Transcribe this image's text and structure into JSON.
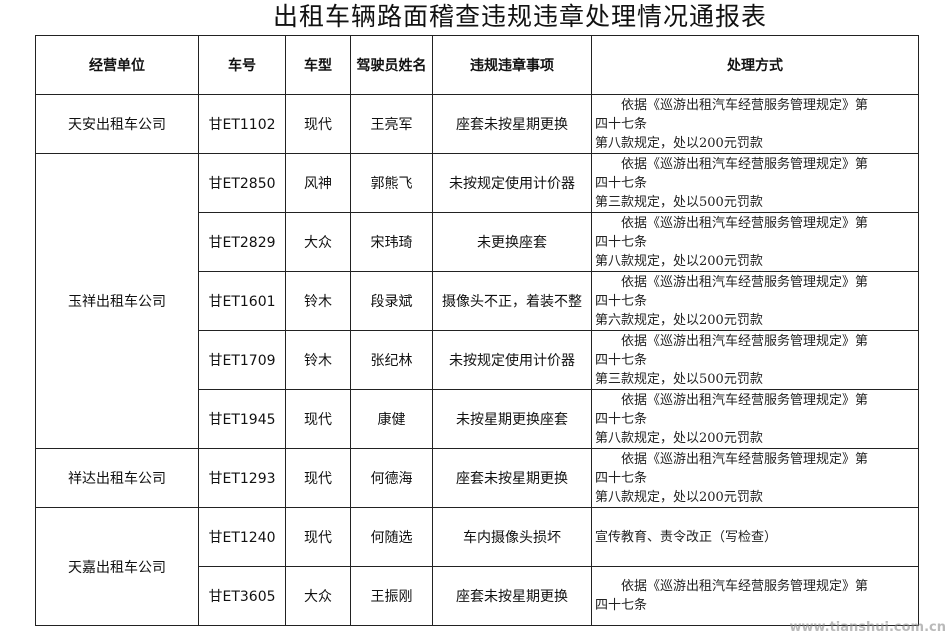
{
  "title": "出租车辆路面稽查违规违章处理情况通报表",
  "headers": [
    "经营单位",
    "车号",
    "车型",
    "驾驶员姓名",
    "违规违章事项",
    "处理方式"
  ],
  "groups": [
    {
      "company": "天安出租车公司",
      "rows": [
        {
          "plate": "甘ET1102",
          "model": "现代",
          "driver": "王亮军",
          "violation": "座套未按星期更换",
          "action": [
            "依据《巡游出租汽车经营服务管理规定》第",
            "四十七条",
            "第八款规定，处以200元罚款"
          ]
        }
      ]
    },
    {
      "company": "玉祥出租车公司",
      "rows": [
        {
          "plate": "甘ET2850",
          "model": "风神",
          "driver": "郭熊飞",
          "violation": "未按规定使用计价器",
          "action": [
            "依据《巡游出租汽车经营服务管理规定》第",
            "四十七条",
            "第三款规定，处以500元罚款"
          ]
        },
        {
          "plate": "甘ET2829",
          "model": "大众",
          "driver": "宋玮琦",
          "violation": "未更换座套",
          "action": [
            "依据《巡游出租汽车经营服务管理规定》第",
            "四十七条",
            "第八款规定，处以200元罚款"
          ]
        },
        {
          "plate": "甘ET1601",
          "model": "铃木",
          "driver": "段录斌",
          "violation": "摄像头不正，着装不整",
          "action": [
            "依据《巡游出租汽车经营服务管理规定》第",
            "四十七条",
            "第六款规定，处以200元罚款"
          ]
        },
        {
          "plate": "甘ET1709",
          "model": "铃木",
          "driver": "张纪林",
          "violation": "未按规定使用计价器",
          "action": [
            "依据《巡游出租汽车经营服务管理规定》第",
            "四十七条",
            "第三款规定，处以500元罚款"
          ]
        },
        {
          "plate": "甘ET1945",
          "model": "现代",
          "driver": "康健",
          "violation": "未按星期更换座套",
          "action": [
            "依据《巡游出租汽车经营服务管理规定》第",
            "四十七条",
            "第八款规定，处以200元罚款"
          ]
        }
      ]
    },
    {
      "company": "祥达出租车公司",
      "rows": [
        {
          "plate": "甘ET1293",
          "model": "现代",
          "driver": "何德海",
          "violation": "座套未按星期更换",
          "action": [
            "依据《巡游出租汽车经营服务管理规定》第",
            "四十七条",
            "第八款规定，处以200元罚款"
          ]
        }
      ]
    },
    {
      "company": "天嘉出租车公司",
      "rows": [
        {
          "plate": "甘ET1240",
          "model": "现代",
          "driver": "何随选",
          "violation": "车内摄像头损坏",
          "action": [
            "宣传教育、责令改正（写检查）"
          ]
        },
        {
          "plate": "甘ET3605",
          "model": "大众",
          "driver": "王振刚",
          "violation": "座套未按星期更换",
          "action": [
            "依据《巡游出租汽车经营服务管理规定》第",
            "四十七条"
          ]
        }
      ]
    }
  ],
  "watermark": {
    "logo": "天水在线",
    "url": "www.tianshui.com.cn"
  }
}
